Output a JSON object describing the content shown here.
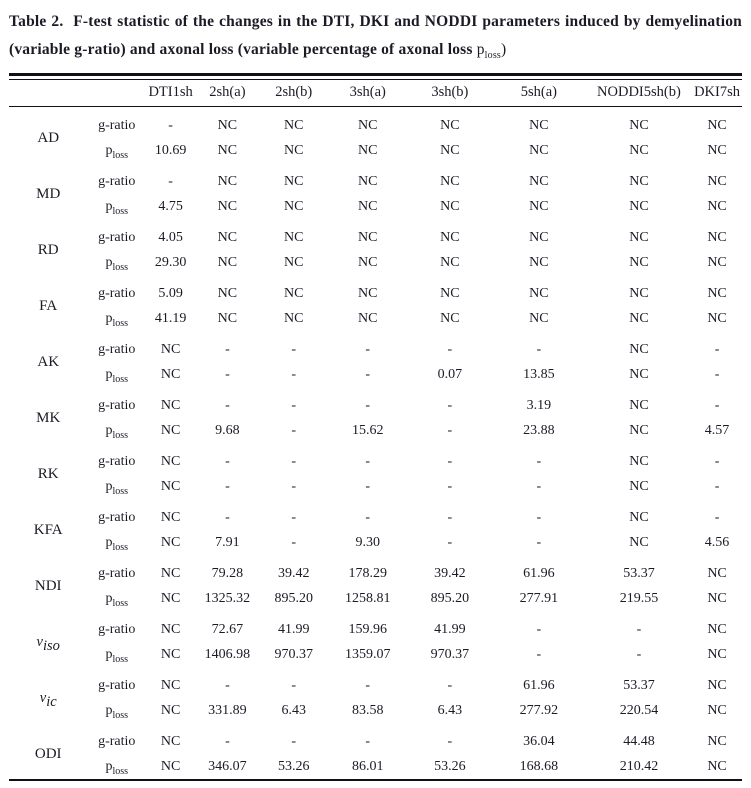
{
  "title": {
    "label": "Table 2.",
    "body": "F-test statistic of the changes in the DTI, DKI and NODDI parameters induced by demyelination (variable g-ratio) and axonal loss (variable percentage of axonal loss",
    "symbol_base": "p",
    "symbol_sub": "loss",
    "suffix": ")"
  },
  "table": {
    "columns": [
      "",
      "",
      "DTI1sh",
      "2sh(a)",
      "2sh(b)",
      "3sh(a)",
      "3sh(b)",
      "5sh(a)",
      "NODDI5sh(b)",
      "DKI7sh"
    ],
    "sub_row_labels": {
      "g_ratio": {
        "base": "g-ratio",
        "sub": ""
      },
      "p_loss": {
        "base": "p",
        "sub": "loss"
      }
    },
    "row_groups": [
      {
        "param": {
          "text": "AD",
          "sub": "",
          "italic": false
        },
        "rows": [
          {
            "label_key": "g_ratio",
            "values": [
              "-",
              "NC",
              "NC",
              "NC",
              "NC",
              "NC",
              "NC",
              "NC"
            ]
          },
          {
            "label_key": "p_loss",
            "values": [
              "10.69",
              "NC",
              "NC",
              "NC",
              "NC",
              "NC",
              "NC",
              "NC"
            ]
          }
        ]
      },
      {
        "param": {
          "text": "MD",
          "sub": "",
          "italic": false
        },
        "rows": [
          {
            "label_key": "g_ratio",
            "values": [
              "-",
              "NC",
              "NC",
              "NC",
              "NC",
              "NC",
              "NC",
              "NC"
            ]
          },
          {
            "label_key": "p_loss",
            "values": [
              "4.75",
              "NC",
              "NC",
              "NC",
              "NC",
              "NC",
              "NC",
              "NC"
            ]
          }
        ]
      },
      {
        "param": {
          "text": "RD",
          "sub": "",
          "italic": false
        },
        "rows": [
          {
            "label_key": "g_ratio",
            "values": [
              "4.05",
              "NC",
              "NC",
              "NC",
              "NC",
              "NC",
              "NC",
              "NC"
            ]
          },
          {
            "label_key": "p_loss",
            "values": [
              "29.30",
              "NC",
              "NC",
              "NC",
              "NC",
              "NC",
              "NC",
              "NC"
            ]
          }
        ]
      },
      {
        "param": {
          "text": "FA",
          "sub": "",
          "italic": false
        },
        "rows": [
          {
            "label_key": "g_ratio",
            "values": [
              "5.09",
              "NC",
              "NC",
              "NC",
              "NC",
              "NC",
              "NC",
              "NC"
            ]
          },
          {
            "label_key": "p_loss",
            "values": [
              "41.19",
              "NC",
              "NC",
              "NC",
              "NC",
              "NC",
              "NC",
              "NC"
            ]
          }
        ]
      },
      {
        "param": {
          "text": "AK",
          "sub": "",
          "italic": false
        },
        "rows": [
          {
            "label_key": "g_ratio",
            "values": [
              "NC",
              "-",
              "-",
              "-",
              "-",
              "-",
              "NC",
              "-"
            ]
          },
          {
            "label_key": "p_loss",
            "values": [
              "NC",
              "-",
              "-",
              "-",
              "0.07",
              "13.85",
              "NC",
              "-"
            ]
          }
        ]
      },
      {
        "param": {
          "text": "MK",
          "sub": "",
          "italic": false
        },
        "rows": [
          {
            "label_key": "g_ratio",
            "values": [
              "NC",
              "-",
              "-",
              "-",
              "-",
              "3.19",
              "NC",
              "-"
            ]
          },
          {
            "label_key": "p_loss",
            "values": [
              "NC",
              "9.68",
              "-",
              "15.62",
              "-",
              "23.88",
              "NC",
              "4.57"
            ]
          }
        ]
      },
      {
        "param": {
          "text": "RK",
          "sub": "",
          "italic": false
        },
        "rows": [
          {
            "label_key": "g_ratio",
            "values": [
              "NC",
              "-",
              "-",
              "-",
              "-",
              "-",
              "NC",
              "-"
            ]
          },
          {
            "label_key": "p_loss",
            "values": [
              "NC",
              "-",
              "-",
              "-",
              "-",
              "-",
              "NC",
              "-"
            ]
          }
        ]
      },
      {
        "param": {
          "text": "KFA",
          "sub": "",
          "italic": false
        },
        "rows": [
          {
            "label_key": "g_ratio",
            "values": [
              "NC",
              "-",
              "-",
              "-",
              "-",
              "-",
              "NC",
              "-"
            ]
          },
          {
            "label_key": "p_loss",
            "values": [
              "NC",
              "7.91",
              "-",
              "9.30",
              "-",
              "-",
              "NC",
              "4.56"
            ]
          }
        ]
      },
      {
        "param": {
          "text": "NDI",
          "sub": "",
          "italic": false
        },
        "rows": [
          {
            "label_key": "g_ratio",
            "values": [
              "NC",
              "79.28",
              "39.42",
              "178.29",
              "39.42",
              "61.96",
              "53.37",
              "NC"
            ]
          },
          {
            "label_key": "p_loss",
            "values": [
              "NC",
              "1325.32",
              "895.20",
              "1258.81",
              "895.20",
              "277.91",
              "219.55",
              "NC"
            ]
          }
        ]
      },
      {
        "param": {
          "text": "v",
          "sub": "iso",
          "italic": true
        },
        "rows": [
          {
            "label_key": "g_ratio",
            "values": [
              "NC",
              "72.67",
              "41.99",
              "159.96",
              "41.99",
              "-",
              "-",
              "NC"
            ]
          },
          {
            "label_key": "p_loss",
            "values": [
              "NC",
              "1406.98",
              "970.37",
              "1359.07",
              "970.37",
              "-",
              "-",
              "NC"
            ]
          }
        ]
      },
      {
        "param": {
          "text": "v",
          "sub": "ic",
          "italic": true
        },
        "rows": [
          {
            "label_key": "g_ratio",
            "values": [
              "NC",
              "-",
              "-",
              "-",
              "-",
              "61.96",
              "53.37",
              "NC"
            ]
          },
          {
            "label_key": "p_loss",
            "values": [
              "NC",
              "331.89",
              "6.43",
              "83.58",
              "6.43",
              "277.92",
              "220.54",
              "NC"
            ]
          }
        ]
      },
      {
        "param": {
          "text": "ODI",
          "sub": "",
          "italic": false
        },
        "rows": [
          {
            "label_key": "g_ratio",
            "values": [
              "NC",
              "-",
              "-",
              "-",
              "-",
              "36.04",
              "44.48",
              "NC"
            ]
          },
          {
            "label_key": "p_loss",
            "values": [
              "NC",
              "346.07",
              "53.26",
              "86.01",
              "53.26",
              "168.68",
              "210.42",
              "NC"
            ]
          }
        ]
      }
    ]
  }
}
